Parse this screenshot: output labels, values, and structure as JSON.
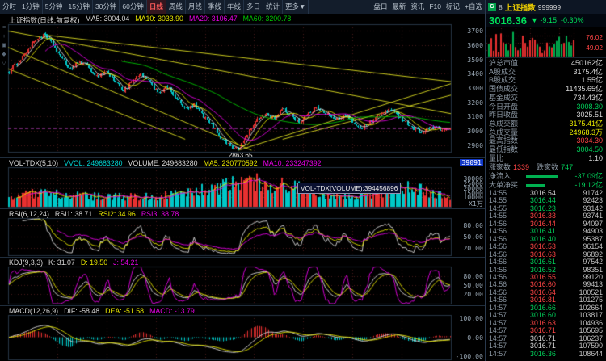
{
  "colors": {
    "red": "#ff4545",
    "green": "#00d05a",
    "yellow": "#e8e800",
    "white": "#d8d8d8",
    "up_candle": "#e83030",
    "down_candle": "#00c8c8",
    "trend_line": "#c9c91e"
  },
  "toolbar": {
    "tabs": [
      {
        "label": "分时"
      },
      {
        "label": "1分钟"
      },
      {
        "label": "5分钟"
      },
      {
        "label": "15分钟"
      },
      {
        "label": "30分钟"
      },
      {
        "label": "60分钟"
      },
      {
        "label": "日线",
        "active": true
      },
      {
        "label": "周线"
      },
      {
        "label": "月线"
      },
      {
        "label": "季线"
      },
      {
        "label": "年线"
      },
      {
        "label": "多日"
      },
      {
        "label": "统计"
      },
      {
        "label": "更多▼"
      }
    ],
    "right_items": [
      "盘口",
      "最新",
      "资讯",
      "F10",
      "标记",
      "+自选"
    ]
  },
  "quote_header": {
    "flag": "G",
    "num": "8",
    "name": "上证指数",
    "code": "999999"
  },
  "quote": {
    "price": "3016.36",
    "arrow": "▼",
    "change": "-9.15",
    "change_pct": "-0.30%",
    "mini_values": [
      "76.02",
      "49.02"
    ]
  },
  "tool_icons": [
    {
      "name": "menu-icon",
      "glyph": "≡"
    },
    {
      "name": "add-icon",
      "glyph": "+"
    },
    {
      "name": "shape-icon",
      "glyph": "▣"
    },
    {
      "name": "diamond-icon",
      "glyph": "◆"
    },
    {
      "name": "arrow-down-icon",
      "glyph": "▽"
    }
  ],
  "main_chart": {
    "title": "上证指数(日线,前复权)",
    "ma5_label": "MA5: 3004.04",
    "ma10_label": "MA10: 3033.90",
    "ma20_label": "MA20: 3106.47",
    "ma60_label": "MA60: 3200.78",
    "scale": [
      "3700",
      "3600",
      "3500",
      "3400",
      "3300",
      "3200",
      "3100",
      "3000",
      "2900"
    ],
    "low_label": "2863.65",
    "last_close": 3016.36,
    "low": 2863.65,
    "anchors": [
      [
        0,
        3420
      ],
      [
        0.02,
        3480
      ],
      [
        0.04,
        3560
      ],
      [
        0.06,
        3640
      ],
      [
        0.08,
        3674
      ],
      [
        0.1,
        3600
      ],
      [
        0.12,
        3505
      ],
      [
        0.14,
        3430
      ],
      [
        0.16,
        3490
      ],
      [
        0.18,
        3445
      ],
      [
        0.2,
        3380
      ],
      [
        0.22,
        3420
      ],
      [
        0.24,
        3350
      ],
      [
        0.26,
        3280
      ],
      [
        0.28,
        3345
      ],
      [
        0.3,
        3395
      ],
      [
        0.32,
        3335
      ],
      [
        0.34,
        3270
      ],
      [
        0.36,
        3310
      ],
      [
        0.38,
        3225
      ],
      [
        0.4,
        3150
      ],
      [
        0.42,
        3180
      ],
      [
        0.44,
        3105
      ],
      [
        0.46,
        3040
      ],
      [
        0.48,
        2955
      ],
      [
        0.5,
        2900
      ],
      [
        0.52,
        2864
      ],
      [
        0.54,
        2975
      ],
      [
        0.56,
        3065
      ],
      [
        0.58,
        3125
      ],
      [
        0.6,
        3085
      ],
      [
        0.62,
        3150
      ],
      [
        0.64,
        3110
      ],
      [
        0.66,
        3060
      ],
      [
        0.68,
        3125
      ],
      [
        0.7,
        3165
      ],
      [
        0.72,
        3120
      ],
      [
        0.74,
        3075
      ],
      [
        0.76,
        3110
      ],
      [
        0.78,
        3060
      ],
      [
        0.8,
        3020
      ],
      [
        0.82,
        3065
      ],
      [
        0.84,
        3110
      ],
      [
        0.86,
        3150
      ],
      [
        0.88,
        3115
      ],
      [
        0.9,
        3060
      ],
      [
        0.92,
        3010
      ],
      [
        0.94,
        2990
      ],
      [
        0.96,
        3030
      ],
      [
        0.98,
        3008
      ],
      [
        1.0,
        3016
      ]
    ],
    "trend_lines": [
      [
        0,
        3700,
        1,
        3120
      ],
      [
        0,
        3585,
        0.55,
        2863
      ],
      [
        0,
        3435,
        0.4,
        2940
      ],
      [
        0.52,
        2863,
        1,
        3330
      ],
      [
        0.62,
        2940,
        1,
        3250
      ],
      [
        0.08,
        3674,
        1,
        3345
      ]
    ]
  },
  "volume_panel": {
    "title": "VOL-TDX(5,10)",
    "vvol_label": "VVOL: 249683280",
    "volume_label": "VOLUME: 249683280",
    "ma5_label": "MA5: 230770592",
    "ma10_label": "MA10: 233247392",
    "scale_top": "39091",
    "scale": [
      "30000",
      "25000",
      "20000",
      "15000",
      "10000"
    ],
    "unit": "X1万",
    "tooltip": "VOL-TDX(VOLUME):394456896"
  },
  "rsi_panel": {
    "title": "RSI(6,12,24)",
    "r1_label": "RSI1: 38.71",
    "r2_label": "RSI2: 34.96",
    "r3_label": "RSI3: 38.78",
    "scale": [
      "80.00",
      "50.00",
      "20.00"
    ]
  },
  "kdj_panel": {
    "title": "KDJ(9,3,3)",
    "k_label": "K: 31.07",
    "d_label": "D: 19.50",
    "j_label": "J: 54.21",
    "scale": [
      "80.00",
      "50.00",
      "20.00"
    ]
  },
  "macd_panel": {
    "title": "MACD(12,26,9)",
    "dif_label": "DIF: -58.48",
    "dea_label": "DEA: -51.58",
    "macd_label": "MACD: -13.79",
    "scale": [
      "100.00",
      "0.00",
      "-100.00"
    ]
  },
  "sidebar": {
    "stats": [
      {
        "label": "沪总市值",
        "value": "450162亿",
        "color": "white"
      },
      {
        "label": "A股成交",
        "value": "3175.4亿",
        "color": "white"
      },
      {
        "label": "B股成交",
        "value": "1.55亿",
        "color": "white"
      },
      {
        "label": "国债成交",
        "value": "11435.65亿",
        "color": "white"
      },
      {
        "label": "基金成交",
        "value": "734.43亿",
        "color": "white"
      },
      {
        "label": "今日开盘",
        "value": "3008.30",
        "color": "green"
      },
      {
        "label": "昨日收盘",
        "value": "3025.51",
        "color": "white"
      },
      {
        "label": "总成交额",
        "value": "3175.41亿",
        "color": "yellow"
      },
      {
        "label": "总成交量",
        "value": "24968.3万",
        "color": "yellow"
      },
      {
        "label": "最高指数",
        "value": "3034.30",
        "color": "red"
      },
      {
        "label": "最低指数",
        "value": "3004.50",
        "color": "green"
      },
      {
        "label": "量比",
        "value": "1.10",
        "color": "white"
      }
    ],
    "breadth": {
      "up_label": "涨家数",
      "up": "1339",
      "down_label": "跌家数",
      "down": "747"
    },
    "flows": [
      {
        "label": "净流入",
        "value": "-37.09亿",
        "bar": 40
      },
      {
        "label": "大单净买",
        "value": "-19.12亿",
        "bar": 24
      }
    ],
    "ticks": [
      [
        "14:55",
        "3016.54",
        "91742"
      ],
      [
        "14:55",
        "3016.44",
        "92423"
      ],
      [
        "14:55",
        "3016.23",
        "93142"
      ],
      [
        "14:55",
        "3016.33",
        "93741"
      ],
      [
        "14:56",
        "3016.44",
        "94097"
      ],
      [
        "14:56",
        "3016.41",
        "94903"
      ],
      [
        "14:56",
        "3016.40",
        "95387"
      ],
      [
        "14:56",
        "3016.53",
        "96154"
      ],
      [
        "14:56",
        "3016.63",
        "96892"
      ],
      [
        "14:56",
        "3016.61",
        "97542"
      ],
      [
        "14:56",
        "3016.52",
        "98351"
      ],
      [
        "14:56",
        "3016.55",
        "99120"
      ],
      [
        "14:56",
        "3016.60",
        "99413"
      ],
      [
        "14:56",
        "3016.64",
        "100521"
      ],
      [
        "14:56",
        "3016.81",
        "101275"
      ],
      [
        "14:57",
        "3016.66",
        "102664"
      ],
      [
        "14:57",
        "3016.60",
        "103817"
      ],
      [
        "14:57",
        "3016.63",
        "104936"
      ],
      [
        "14:57",
        "3016.71",
        "105695"
      ],
      [
        "14:57",
        "3016.71",
        "106237"
      ],
      [
        "14:57",
        "3016.71",
        "107590"
      ],
      [
        "14:57",
        "3016.36",
        "108644"
      ]
    ]
  }
}
